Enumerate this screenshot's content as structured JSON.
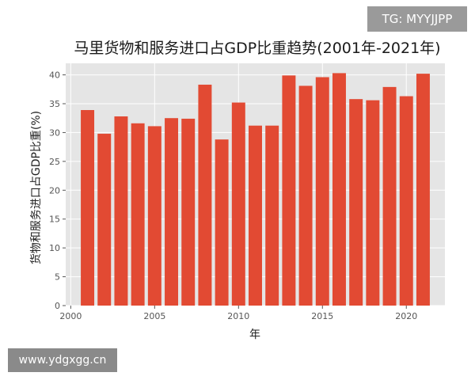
{
  "watermarks": {
    "top_right": "TG: MYYJJPP",
    "bottom_left": "www.ydgxgg.cn"
  },
  "colors": {
    "bar": "#E24A33",
    "plot_bg": "#E5E5E5",
    "grid": "#FFFFFF"
  },
  "chart_data": {
    "type": "bar",
    "title": "马里货物和服务进口占GDP比重趋势(2001年-2021年)",
    "xlabel": "年",
    "ylabel": "货物和服务进口占GDP比重(%)",
    "x": [
      2001,
      2002,
      2003,
      2004,
      2005,
      2006,
      2007,
      2008,
      2009,
      2010,
      2011,
      2012,
      2013,
      2014,
      2015,
      2016,
      2017,
      2018,
      2019,
      2020,
      2021
    ],
    "values": [
      33.9,
      29.8,
      32.8,
      31.6,
      31.1,
      32.5,
      32.4,
      38.3,
      28.8,
      35.2,
      31.2,
      31.2,
      39.9,
      38.1,
      39.6,
      40.3,
      35.8,
      35.6,
      37.9,
      36.3,
      40.2
    ],
    "xlim": [
      1999.7,
      2022.3
    ],
    "ylim": [
      0,
      42
    ],
    "xticks": [
      2000,
      2005,
      2010,
      2015,
      2020
    ],
    "yticks": [
      0,
      5,
      10,
      15,
      20,
      25,
      30,
      35,
      40
    ],
    "grid": true,
    "legend": "none"
  }
}
